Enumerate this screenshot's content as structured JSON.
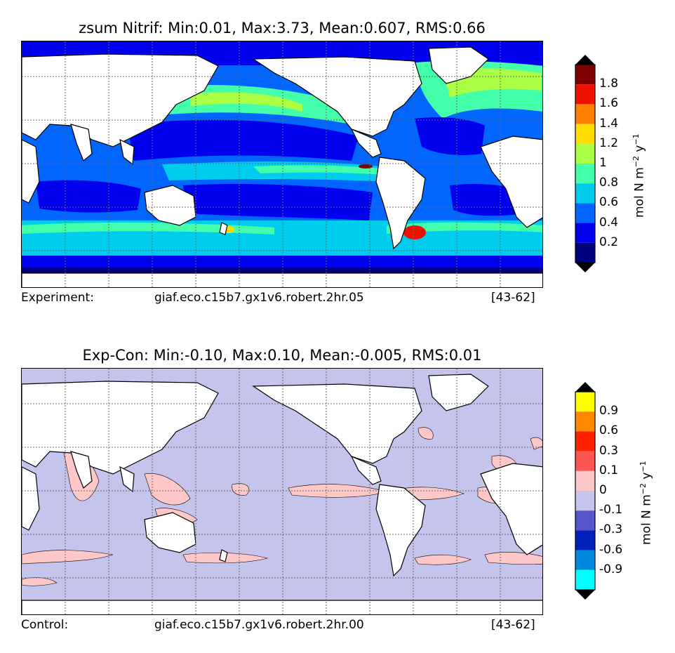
{
  "panels": [
    {
      "title": "zsum Nitrif: Min:0.01, Max:3.73, Mean:0.607, RMS:0.66",
      "footer_label": "Experiment:",
      "footer_case": "giaf.eco.c15b7.gx1v6.robert.2hr.05",
      "footer_years": "[43-62]",
      "colorbar": {
        "unit_prefix": "mol N m",
        "unit_exp1": "−2",
        "unit_mid": " y",
        "unit_exp2": "−1",
        "tick_labels": [
          "1.8",
          "1.6",
          "1.4",
          "1.2",
          "1",
          "0.8",
          "0.6",
          "0.4",
          "0.2"
        ],
        "colors_top_to_bottom": [
          "#7f0000",
          "#ee1100",
          "#ff7f00",
          "#ffdd00",
          "#aaff44",
          "#44ffaa",
          "#00ccee",
          "#0066ff",
          "#0000ee",
          "#00007f"
        ],
        "extend_top_color": "#000000",
        "extend_bottom_color": "#000000"
      }
    },
    {
      "title": "Exp-Con: Min:-0.10, Max:0.10, Mean:-0.005, RMS:0.01",
      "footer_label": "Control:",
      "footer_case": "giaf.eco.c15b7.gx1v6.robert.2hr.00",
      "footer_years": "[43-62]",
      "colorbar": {
        "unit_prefix": "mol N m",
        "unit_exp1": "−2",
        "unit_mid": " y",
        "unit_exp2": "−1",
        "tick_labels": [
          "0.9",
          "0.6",
          "0.3",
          "0.1",
          "0",
          "-0.1",
          "-0.3",
          "-0.6",
          "-0.9"
        ],
        "colors_top_to_bottom": [
          "#ffff00",
          "#ff8800",
          "#ff2200",
          "#ff5555",
          "#ffc8c8",
          "#c4c4ec",
          "#5555cc",
          "#0022bb",
          "#0088dd",
          "#00ffff"
        ],
        "extend_top_color": "#000000",
        "extend_bottom_color": "#000000"
      }
    }
  ],
  "colors": {
    "land": "#ffffff",
    "coast": "#000000",
    "grid": "#666666",
    "diff_background": "#c4c4ec",
    "diff_positive": "#ffc8c8"
  }
}
